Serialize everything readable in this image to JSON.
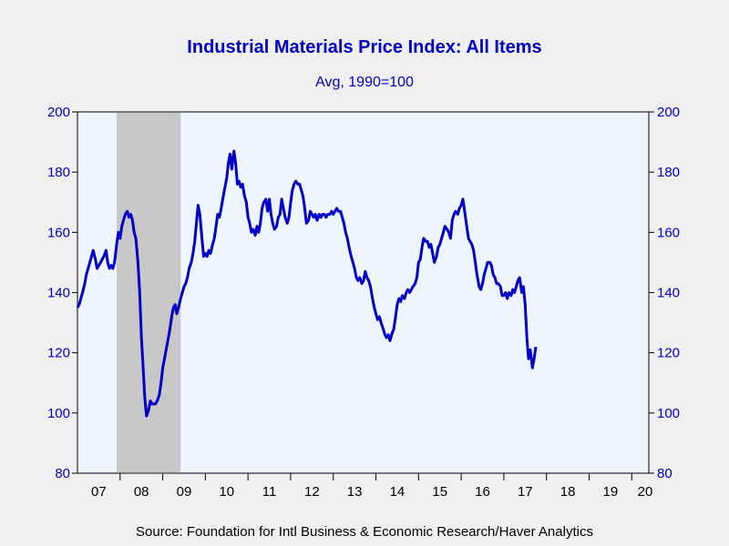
{
  "chart_data": {
    "type": "line",
    "title": "Industrial Materials Price Index: All Items",
    "subtitle": "Avg, 1990=100",
    "source": "Source:  Foundation for Intl Business & Economic Research/Haver Analytics",
    "xlabel": "",
    "ylabel": "",
    "x_ticks": [
      "07",
      "08",
      "09",
      "10",
      "11",
      "12",
      "13",
      "14",
      "15",
      "16",
      "17",
      "18",
      "19",
      "20"
    ],
    "y_ticks": [
      "80",
      "100",
      "120",
      "140",
      "160",
      "180",
      "200"
    ],
    "ylim": [
      80,
      200
    ],
    "xlim": [
      2007.0,
      2020.4
    ],
    "grid": false,
    "legend": "none",
    "recession": {
      "start": 2007.92,
      "end": 2009.42
    },
    "colors": {
      "line": "#0000c8",
      "text": "#0000c8",
      "plot_bg": "#eef5ff",
      "recession": "#c8c8c8"
    },
    "series": [
      {
        "points": [
          [
            2007.0,
            135
          ],
          [
            2007.04,
            136
          ],
          [
            2007.08,
            138
          ],
          [
            2007.12,
            140
          ],
          [
            2007.17,
            143
          ],
          [
            2007.21,
            146
          ],
          [
            2007.25,
            148
          ],
          [
            2007.29,
            150
          ],
          [
            2007.33,
            152
          ],
          [
            2007.37,
            154
          ],
          [
            2007.42,
            151
          ],
          [
            2007.46,
            148
          ],
          [
            2007.5,
            149
          ],
          [
            2007.54,
            150
          ],
          [
            2007.58,
            151
          ],
          [
            2007.62,
            152
          ],
          [
            2007.67,
            154
          ],
          [
            2007.71,
            150
          ],
          [
            2007.75,
            148
          ],
          [
            2007.79,
            149
          ],
          [
            2007.83,
            148
          ],
          [
            2007.87,
            150
          ],
          [
            2007.92,
            156
          ],
          [
            2007.96,
            160
          ],
          [
            2008.0,
            158
          ],
          [
            2008.04,
            162
          ],
          [
            2008.08,
            164
          ],
          [
            2008.12,
            166
          ],
          [
            2008.17,
            167
          ],
          [
            2008.21,
            165
          ],
          [
            2008.25,
            166
          ],
          [
            2008.29,
            164
          ],
          [
            2008.33,
            160
          ],
          [
            2008.37,
            158
          ],
          [
            2008.42,
            150
          ],
          [
            2008.46,
            140
          ],
          [
            2008.5,
            125
          ],
          [
            2008.54,
            115
          ],
          [
            2008.58,
            105
          ],
          [
            2008.62,
            99
          ],
          [
            2008.67,
            101
          ],
          [
            2008.71,
            104
          ],
          [
            2008.75,
            103
          ],
          [
            2008.79,
            103
          ],
          [
            2008.83,
            103
          ],
          [
            2008.87,
            104
          ],
          [
            2008.92,
            106
          ],
          [
            2008.96,
            110
          ],
          [
            2009.0,
            115
          ],
          [
            2009.04,
            118
          ],
          [
            2009.08,
            121
          ],
          [
            2009.12,
            124
          ],
          [
            2009.17,
            128
          ],
          [
            2009.21,
            132
          ],
          [
            2009.25,
            135
          ],
          [
            2009.29,
            136
          ],
          [
            2009.33,
            133
          ],
          [
            2009.37,
            135
          ],
          [
            2009.42,
            138
          ],
          [
            2009.46,
            140
          ],
          [
            2009.5,
            142
          ],
          [
            2009.54,
            143
          ],
          [
            2009.58,
            145
          ],
          [
            2009.62,
            148
          ],
          [
            2009.67,
            150
          ],
          [
            2009.71,
            153
          ],
          [
            2009.75,
            157
          ],
          [
            2009.79,
            163
          ],
          [
            2009.83,
            169
          ],
          [
            2009.87,
            166
          ],
          [
            2009.92,
            158
          ],
          [
            2009.96,
            152
          ],
          [
            2010.0,
            153
          ],
          [
            2010.04,
            152
          ],
          [
            2010.08,
            154
          ],
          [
            2010.12,
            153
          ],
          [
            2010.17,
            156
          ],
          [
            2010.21,
            158
          ],
          [
            2010.25,
            162
          ],
          [
            2010.29,
            166
          ],
          [
            2010.33,
            165
          ],
          [
            2010.37,
            168
          ],
          [
            2010.42,
            172
          ],
          [
            2010.46,
            175
          ],
          [
            2010.5,
            178
          ],
          [
            2010.54,
            183
          ],
          [
            2010.58,
            186
          ],
          [
            2010.62,
            181
          ],
          [
            2010.67,
            187
          ],
          [
            2010.71,
            183
          ],
          [
            2010.75,
            176
          ],
          [
            2010.79,
            177
          ],
          [
            2010.83,
            175
          ],
          [
            2010.87,
            176
          ],
          [
            2010.92,
            172
          ],
          [
            2010.96,
            170
          ],
          [
            2011.0,
            165
          ],
          [
            2011.04,
            163
          ],
          [
            2011.08,
            160
          ],
          [
            2011.12,
            161
          ],
          [
            2011.17,
            159
          ],
          [
            2011.21,
            162
          ],
          [
            2011.25,
            160
          ],
          [
            2011.29,
            163
          ],
          [
            2011.33,
            168
          ],
          [
            2011.37,
            170
          ],
          [
            2011.42,
            171
          ],
          [
            2011.46,
            167
          ],
          [
            2011.5,
            171
          ],
          [
            2011.54,
            166
          ],
          [
            2011.58,
            163
          ],
          [
            2011.62,
            161
          ],
          [
            2011.67,
            162
          ],
          [
            2011.71,
            165
          ],
          [
            2011.75,
            166
          ],
          [
            2011.79,
            171
          ],
          [
            2011.83,
            168
          ],
          [
            2011.87,
            165
          ],
          [
            2011.92,
            163
          ],
          [
            2011.96,
            165
          ],
          [
            2012.0,
            170
          ],
          [
            2012.04,
            174
          ],
          [
            2012.08,
            176
          ],
          [
            2012.12,
            177
          ],
          [
            2012.17,
            176
          ],
          [
            2012.21,
            176
          ],
          [
            2012.25,
            174
          ],
          [
            2012.29,
            172
          ],
          [
            2012.33,
            168
          ],
          [
            2012.37,
            163
          ],
          [
            2012.42,
            164
          ],
          [
            2012.46,
            167
          ],
          [
            2012.5,
            166
          ],
          [
            2012.54,
            165
          ],
          [
            2012.58,
            166
          ],
          [
            2012.62,
            164
          ],
          [
            2012.67,
            166
          ],
          [
            2012.71,
            165
          ],
          [
            2012.75,
            166
          ],
          [
            2012.79,
            166
          ],
          [
            2012.83,
            165
          ],
          [
            2012.87,
            166
          ],
          [
            2012.92,
            166
          ],
          [
            2012.96,
            167
          ],
          [
            2013.0,
            166
          ],
          [
            2013.04,
            167
          ],
          [
            2013.08,
            168
          ],
          [
            2013.12,
            167
          ],
          [
            2013.17,
            167
          ],
          [
            2013.21,
            165
          ],
          [
            2013.25,
            163
          ],
          [
            2013.29,
            160
          ],
          [
            2013.33,
            158
          ],
          [
            2013.37,
            155
          ],
          [
            2013.42,
            152
          ],
          [
            2013.46,
            150
          ],
          [
            2013.5,
            148
          ],
          [
            2013.54,
            145
          ],
          [
            2013.58,
            144
          ],
          [
            2013.62,
            145
          ],
          [
            2013.67,
            143
          ],
          [
            2013.71,
            144
          ],
          [
            2013.75,
            147
          ],
          [
            2013.79,
            145
          ],
          [
            2013.83,
            144
          ],
          [
            2013.87,
            142
          ],
          [
            2013.92,
            138
          ],
          [
            2013.96,
            135
          ],
          [
            2014.0,
            133
          ],
          [
            2014.04,
            131
          ],
          [
            2014.08,
            132
          ],
          [
            2014.12,
            130
          ],
          [
            2014.17,
            128
          ],
          [
            2014.21,
            126
          ],
          [
            2014.25,
            125
          ],
          [
            2014.29,
            126
          ],
          [
            2014.33,
            124
          ],
          [
            2014.37,
            126
          ],
          [
            2014.42,
            128
          ],
          [
            2014.46,
            132
          ],
          [
            2014.5,
            136
          ],
          [
            2014.54,
            138
          ],
          [
            2014.58,
            137
          ],
          [
            2014.62,
            139
          ],
          [
            2014.67,
            138
          ],
          [
            2014.71,
            140
          ],
          [
            2014.75,
            141
          ],
          [
            2014.79,
            140
          ],
          [
            2014.83,
            141
          ],
          [
            2014.87,
            142
          ],
          [
            2014.92,
            143
          ],
          [
            2014.96,
            145
          ],
          [
            2015.0,
            150
          ],
          [
            2015.04,
            151
          ],
          [
            2015.08,
            155
          ],
          [
            2015.12,
            158
          ],
          [
            2015.17,
            157
          ],
          [
            2015.21,
            157
          ],
          [
            2015.25,
            155
          ],
          [
            2015.29,
            156
          ],
          [
            2015.33,
            153
          ],
          [
            2015.37,
            150
          ],
          [
            2015.42,
            152
          ],
          [
            2015.46,
            155
          ],
          [
            2015.5,
            156
          ],
          [
            2015.54,
            158
          ],
          [
            2015.58,
            160
          ],
          [
            2015.62,
            162
          ],
          [
            2015.67,
            161
          ],
          [
            2015.71,
            160
          ],
          [
            2015.75,
            158
          ],
          [
            2015.79,
            164
          ],
          [
            2015.83,
            166
          ],
          [
            2015.87,
            167
          ],
          [
            2015.92,
            166
          ],
          [
            2015.96,
            168
          ],
          [
            2016.0,
            169
          ],
          [
            2016.04,
            171
          ],
          [
            2016.08,
            167
          ],
          [
            2016.12,
            163
          ],
          [
            2016.17,
            158
          ],
          [
            2016.21,
            157
          ],
          [
            2016.25,
            156
          ],
          [
            2016.29,
            154
          ],
          [
            2016.33,
            150
          ],
          [
            2016.37,
            146
          ],
          [
            2016.42,
            142
          ],
          [
            2016.46,
            141
          ],
          [
            2016.5,
            143
          ],
          [
            2016.54,
            146
          ],
          [
            2016.58,
            148
          ],
          [
            2016.62,
            150
          ],
          [
            2016.67,
            150
          ],
          [
            2016.71,
            149
          ],
          [
            2016.75,
            146
          ],
          [
            2016.79,
            145
          ],
          [
            2016.83,
            143
          ],
          [
            2016.87,
            143
          ],
          [
            2016.92,
            142
          ],
          [
            2016.96,
            139
          ],
          [
            2017.0,
            139
          ],
          [
            2017.04,
            140
          ],
          [
            2017.08,
            138
          ],
          [
            2017.12,
            140
          ],
          [
            2017.17,
            139
          ],
          [
            2017.21,
            141
          ],
          [
            2017.25,
            140
          ],
          [
            2017.29,
            142
          ],
          [
            2017.33,
            144
          ],
          [
            2017.37,
            145
          ],
          [
            2017.42,
            140
          ],
          [
            2017.46,
            142
          ],
          [
            2017.5,
            136
          ],
          [
            2017.54,
            125
          ],
          [
            2017.58,
            118
          ],
          [
            2017.62,
            121
          ],
          [
            2017.67,
            115
          ],
          [
            2017.71,
            118
          ],
          [
            2017.75,
            122
          ]
        ]
      }
    ]
  }
}
